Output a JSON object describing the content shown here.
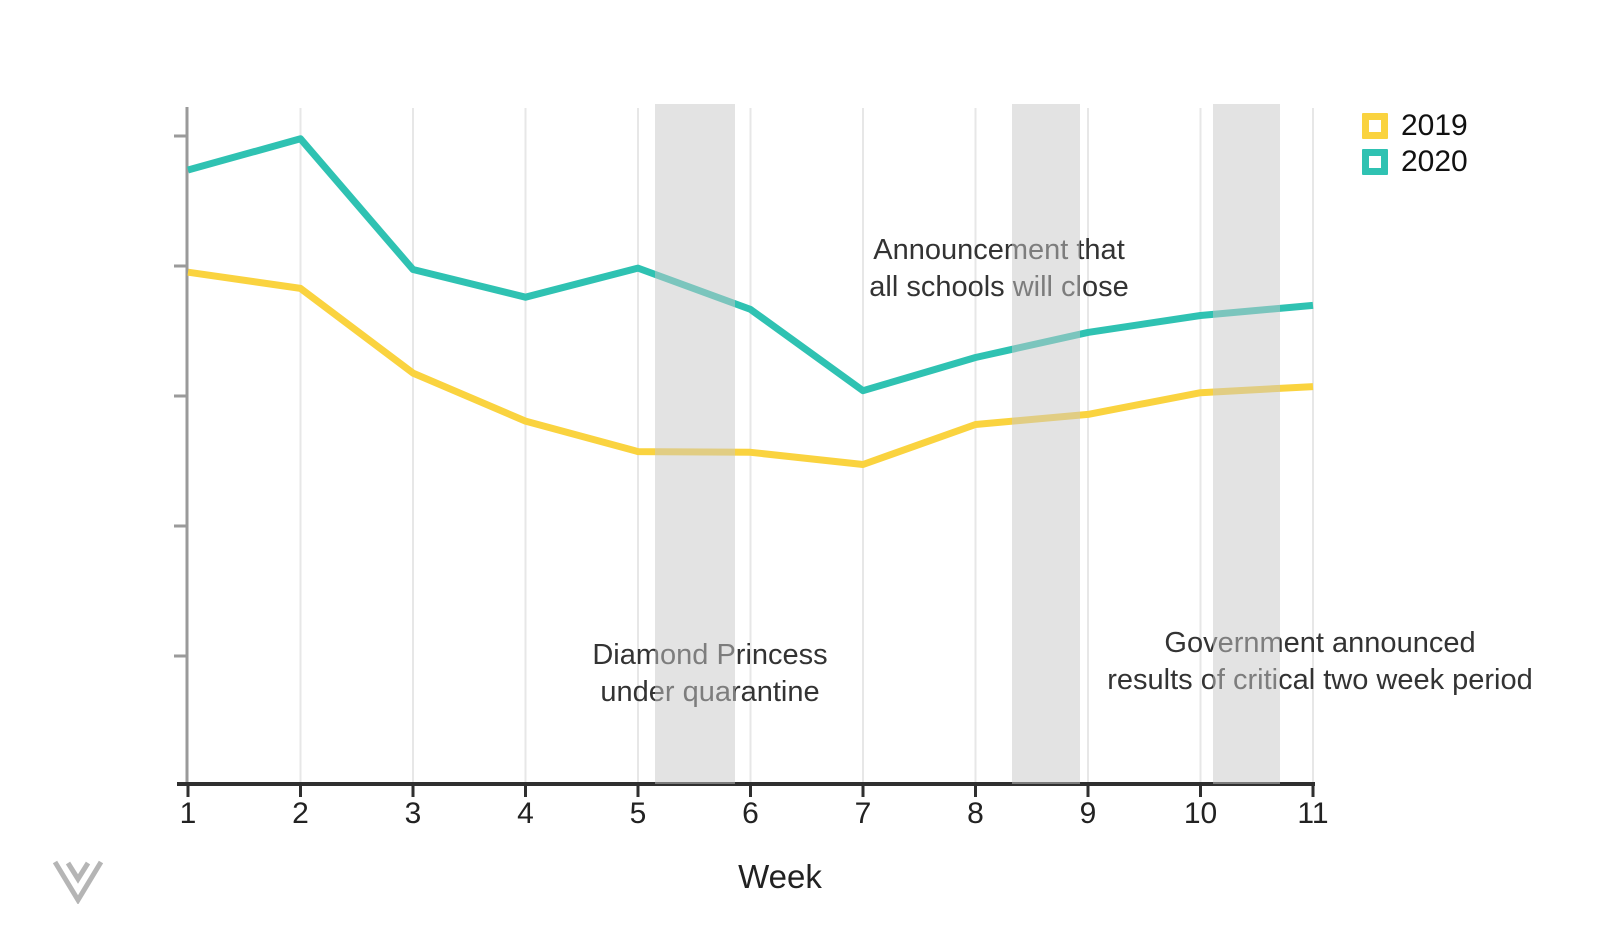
{
  "chart_data": {
    "type": "line",
    "x": [
      1,
      2,
      3,
      4,
      5,
      6,
      7,
      8,
      9,
      10,
      11
    ],
    "xlabel": "Week",
    "x_tick_labels": [
      "1",
      "2",
      "3",
      "4",
      "5",
      "6",
      "7",
      "8",
      "9",
      "10",
      "11"
    ],
    "y_axis": {
      "tick_labels_visible": false,
      "range": [
        0,
        100
      ],
      "ticks": 5
    },
    "grid": "vertical-only",
    "legend_position": "top-right",
    "series": [
      {
        "name": "2019",
        "color": "#FAD33F",
        "values": [
          75.6,
          73.2,
          60.7,
          53.6,
          49.1,
          49.0,
          47.2,
          53.1,
          54.6,
          57.8,
          58.7
        ]
      },
      {
        "name": "2020",
        "color": "#2FC2B2",
        "values": [
          90.7,
          95.3,
          76.0,
          71.9,
          76.2,
          70.1,
          58.1,
          63.0,
          66.7,
          69.2,
          70.7
        ]
      }
    ],
    "highlight_bands": {
      "color": "#C8C8C8",
      "opacity": 0.5,
      "ranges": [
        {
          "from": 5.15,
          "to": 5.86
        },
        {
          "from": 8.32,
          "to": 8.93
        },
        {
          "from": 10.11,
          "to": 10.71
        }
      ]
    },
    "annotations": [
      {
        "lines": [
          "Announcement that",
          "all schools will close"
        ]
      },
      {
        "lines": [
          "Diamond Princess",
          "under quarantine"
        ]
      },
      {
        "lines": [
          "Government announced",
          "results of critical two week period"
        ]
      }
    ]
  },
  "colors": {
    "axis_x": "#2F2F2F",
    "axis_y": "#9A9A9A",
    "gridline": "#E7E7E7",
    "annotation_text": "#333333",
    "logo": "#B5B5B5"
  }
}
